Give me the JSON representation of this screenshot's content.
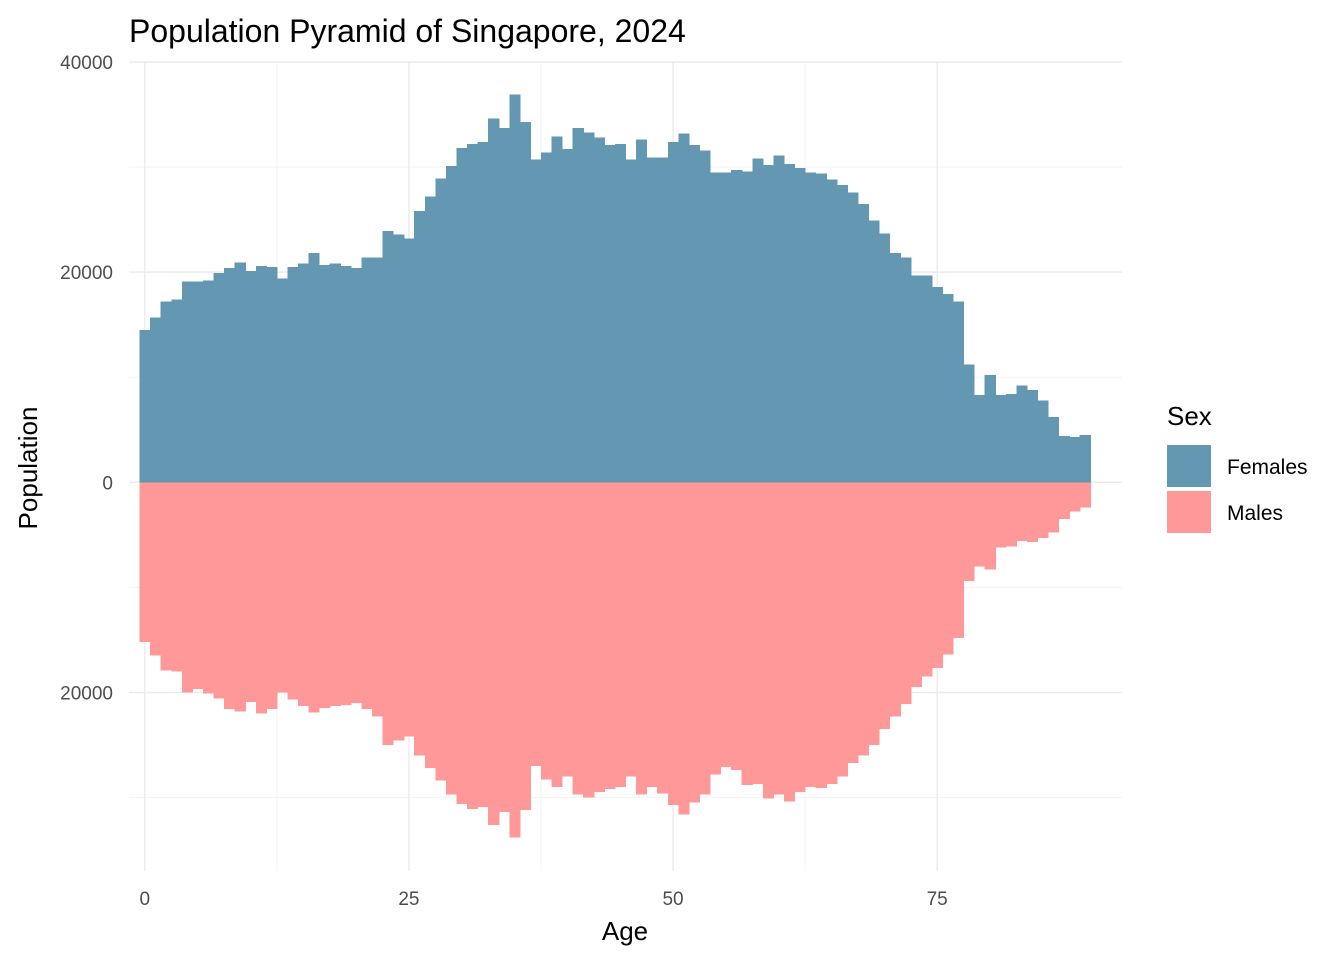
{
  "chart_data": {
    "type": "bar",
    "title": "Population Pyramid of Singapore, 2024",
    "xlabel": "Age",
    "ylabel": "Population",
    "xlim": [
      -1.5,
      92.5
    ],
    "ylim": [
      -37000,
      40000
    ],
    "x_ticks": [
      0,
      25,
      50,
      75
    ],
    "y_ticks": [
      {
        "value": 40000,
        "label": "40000"
      },
      {
        "value": 20000,
        "label": "20000"
      },
      {
        "value": 0,
        "label": "0"
      },
      {
        "value": -20000,
        "label": "20000"
      }
    ],
    "x": [
      0,
      1,
      2,
      3,
      4,
      5,
      6,
      7,
      8,
      9,
      10,
      11,
      12,
      13,
      14,
      15,
      16,
      17,
      18,
      19,
      20,
      21,
      22,
      23,
      24,
      25,
      26,
      27,
      28,
      29,
      30,
      31,
      32,
      33,
      34,
      35,
      36,
      37,
      38,
      39,
      40,
      41,
      42,
      43,
      44,
      45,
      46,
      47,
      48,
      49,
      50,
      51,
      52,
      53,
      54,
      55,
      56,
      57,
      58,
      59,
      60,
      61,
      62,
      63,
      64,
      65,
      66,
      67,
      68,
      69,
      70,
      71,
      72,
      73,
      74,
      75,
      76,
      77,
      78,
      79,
      80,
      81,
      82,
      83,
      84,
      85,
      86,
      87,
      88,
      89
    ],
    "series": [
      {
        "name": "Females",
        "color": "#6497b1",
        "values": [
          14500,
          15700,
          17200,
          17400,
          19100,
          19100,
          19200,
          19900,
          20400,
          20900,
          20100,
          20600,
          20500,
          19400,
          20500,
          20800,
          21800,
          20700,
          20800,
          20600,
          20400,
          21400,
          21400,
          23900,
          23600,
          23200,
          25800,
          27200,
          28900,
          30100,
          31800,
          32200,
          32400,
          34600,
          33700,
          36900,
          34300,
          30700,
          31400,
          32900,
          31700,
          33700,
          33300,
          32800,
          32100,
          32200,
          30700,
          32600,
          30900,
          30900,
          32400,
          33200,
          32100,
          31600,
          29500,
          29500,
          29700,
          29600,
          30800,
          30200,
          31100,
          30300,
          29900,
          29500,
          29400,
          28800,
          28300,
          27600,
          26500,
          24900,
          23700,
          21800,
          21400,
          19700,
          19700,
          18600,
          17900,
          17200,
          11200,
          8300,
          10200,
          8300,
          8400,
          9200,
          8800,
          7800,
          6200,
          4400,
          4300,
          4500
        ]
      },
      {
        "name": "Males",
        "color": "#ff9999",
        "values": [
          -15200,
          -16500,
          -17900,
          -18000,
          -20000,
          -19700,
          -20100,
          -20600,
          -21600,
          -21800,
          -20900,
          -22000,
          -21600,
          -20000,
          -20700,
          -21300,
          -21900,
          -21500,
          -21300,
          -21200,
          -21000,
          -21600,
          -22300,
          -25000,
          -24600,
          -24200,
          -26000,
          -27200,
          -28400,
          -29700,
          -30600,
          -31100,
          -30900,
          -32600,
          -31400,
          -33800,
          -31200,
          -27000,
          -28300,
          -29000,
          -28000,
          -29700,
          -30000,
          -29500,
          -29200,
          -29000,
          -28000,
          -29700,
          -29000,
          -29600,
          -30700,
          -31600,
          -30500,
          -29700,
          -27800,
          -27100,
          -27400,
          -28800,
          -28700,
          -30100,
          -29700,
          -30400,
          -29500,
          -29000,
          -29100,
          -28700,
          -28000,
          -26700,
          -26000,
          -25000,
          -23500,
          -22300,
          -21100,
          -19500,
          -18500,
          -17700,
          -16400,
          -14800,
          -9400,
          -8000,
          -8300,
          -6200,
          -6100,
          -5600,
          -5700,
          -5300,
          -4800,
          -3500,
          -2800,
          -2400
        ]
      }
    ],
    "legend": {
      "title": "Sex",
      "position": "right"
    },
    "grid": true
  }
}
